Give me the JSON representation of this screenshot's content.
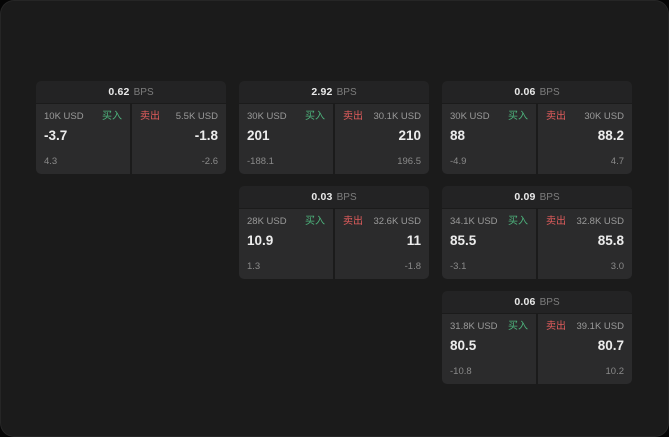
{
  "labels": {
    "bps_unit": "BPS",
    "buy": "买入",
    "sell": "卖出"
  },
  "colors": {
    "background": "#1b1b1b",
    "card_header": "#232324",
    "panel": "#2b2b2c",
    "buy_green": "#4db47d",
    "sell_red": "#e05c5c",
    "price_text": "#ececec",
    "muted_text": "#8a8a8a"
  },
  "cards": [
    {
      "bps": "0.62",
      "buy": {
        "amount": "10K USD",
        "price": "-3.7",
        "delta": "4.3"
      },
      "sell": {
        "amount": "5.5K USD",
        "price": "-1.8",
        "delta": "-2.6"
      }
    },
    {
      "bps": "2.92",
      "buy": {
        "amount": "30K USD",
        "price": "201",
        "delta": "-188.1"
      },
      "sell": {
        "amount": "30.1K USD",
        "price": "210",
        "delta": "196.5"
      }
    },
    {
      "bps": "0.06",
      "buy": {
        "amount": "30K USD",
        "price": "88",
        "delta": "-4.9"
      },
      "sell": {
        "amount": "30K USD",
        "price": "88.2",
        "delta": "4.7"
      }
    },
    {
      "bps": "0.03",
      "buy": {
        "amount": "28K USD",
        "price": "10.9",
        "delta": "1.3"
      },
      "sell": {
        "amount": "32.6K USD",
        "price": "11",
        "delta": "-1.8"
      }
    },
    {
      "bps": "0.09",
      "buy": {
        "amount": "34.1K USD",
        "price": "85.5",
        "delta": "-3.1"
      },
      "sell": {
        "amount": "32.8K USD",
        "price": "85.8",
        "delta": "3.0"
      }
    },
    {
      "bps": "0.06",
      "buy": {
        "amount": "31.8K USD",
        "price": "80.5",
        "delta": "-10.8"
      },
      "sell": {
        "amount": "39.1K USD",
        "price": "80.7",
        "delta": "10.2"
      }
    }
  ]
}
